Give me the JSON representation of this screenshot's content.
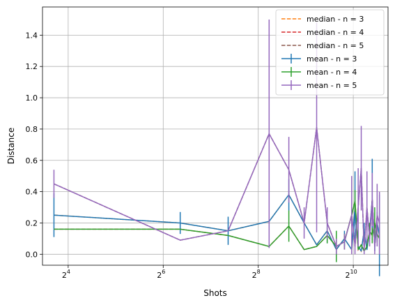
{
  "chart_data": {
    "type": "line",
    "title": "",
    "xlabel": "Shots",
    "ylabel": "Distance",
    "x_scale": "log2",
    "xlim": [
      11,
      1700
    ],
    "ylim": [
      -0.07,
      1.58
    ],
    "x_ticks": [
      {
        "value": 16,
        "base": "2",
        "exp": "4"
      },
      {
        "value": 64,
        "base": "2",
        "exp": "6"
      },
      {
        "value": 256,
        "base": "2",
        "exp": "8"
      },
      {
        "value": 1024,
        "base": "2",
        "exp": "10"
      }
    ],
    "y_ticks": [
      {
        "value": 0.0,
        "label": "0.0"
      },
      {
        "value": 0.2,
        "label": "0.2"
      },
      {
        "value": 0.4,
        "label": "0.4"
      },
      {
        "value": 0.6,
        "label": "0.6"
      },
      {
        "value": 0.8,
        "label": "0.8"
      },
      {
        "value": 1.0,
        "label": "1.0"
      },
      {
        "value": 1.2,
        "label": "1.2"
      },
      {
        "value": 1.4,
        "label": "1.4"
      }
    ],
    "grid": true,
    "legend_position": "top-right",
    "x": [
      13,
      82,
      165,
      300,
      400,
      500,
      600,
      700,
      800,
      900,
      1000,
      1050,
      1100,
      1150,
      1200,
      1250,
      1300,
      1350,
      1400,
      1450,
      1500
    ],
    "series": [
      {
        "name": "median - n = 3",
        "style": "dashed",
        "color": "#ff7f0e",
        "values": [
          0.25,
          0.2,
          0.15,
          0.21,
          0.38,
          0.2,
          0.06,
          0.15,
          0.03,
          0.1,
          0.03,
          0.3,
          0.05,
          0.02,
          0.15,
          0.03,
          0.15,
          0.35,
          0.05,
          0.2,
          0.12
        ]
      },
      {
        "name": "median - n = 4",
        "style": "dashed",
        "color": "#d62728",
        "values": [
          0.16,
          0.16,
          0.12,
          0.05,
          0.18,
          0.03,
          0.05,
          0.12,
          0.05,
          0.08,
          0.25,
          0.34,
          0.03,
          0.06,
          0.02,
          0.05,
          0.15,
          0.12,
          0.2,
          0.13,
          0.1
        ]
      },
      {
        "name": "median - n = 5",
        "style": "dashed",
        "color": "#8c564b",
        "values": [
          0.45,
          0.09,
          0.15,
          0.77,
          0.54,
          0.2,
          0.81,
          0.2,
          0.05,
          0.08,
          0.25,
          0.05,
          0.3,
          0.55,
          0.03,
          0.3,
          0.1,
          0.35,
          0.05,
          0.25,
          0.2
        ]
      },
      {
        "name": "mean - n = 3",
        "style": "errorbar",
        "color": "#1f77b4",
        "values": [
          0.25,
          0.2,
          0.15,
          0.21,
          0.38,
          0.2,
          0.06,
          0.15,
          0.03,
          0.1,
          0.03,
          0.3,
          0.05,
          0.02,
          0.15,
          0.03,
          0.15,
          0.35,
          0.05,
          0.2,
          0.12
        ],
        "errors": [
          0.14,
          0.07,
          0.09,
          0.0,
          0.1,
          0.0,
          0.0,
          0.08,
          0.0,
          0.05,
          0.0,
          0.23,
          0.0,
          0.0,
          0.05,
          0.0,
          0.05,
          0.26,
          0.03,
          0.07,
          0.26
        ]
      },
      {
        "name": "mean - n = 4",
        "style": "errorbar",
        "color": "#2ca02c",
        "values": [
          0.16,
          0.16,
          0.12,
          0.05,
          0.18,
          0.03,
          0.05,
          0.12,
          0.05,
          0.08,
          0.25,
          0.34,
          0.03,
          0.06,
          0.02,
          0.05,
          0.15,
          0.12,
          0.2,
          0.13,
          0.1
        ],
        "errors": [
          0.0,
          0.0,
          0.0,
          0.0,
          0.1,
          0.0,
          0.0,
          0.05,
          0.1,
          0.05,
          0.05,
          0.07,
          0.0,
          0.0,
          0.0,
          0.0,
          0.05,
          0.05,
          0.1,
          0.05,
          0.05
        ]
      },
      {
        "name": "mean - n = 5",
        "style": "errorbar",
        "color": "#9467bd",
        "values": [
          0.45,
          0.09,
          0.15,
          0.77,
          0.54,
          0.2,
          0.81,
          0.2,
          0.05,
          0.08,
          0.25,
          0.05,
          0.3,
          0.55,
          0.03,
          0.3,
          0.1,
          0.35,
          0.05,
          0.25,
          0.2
        ],
        "errors": [
          0.09,
          0.0,
          0.0,
          0.73,
          0.21,
          0.1,
          0.67,
          0.1,
          0.05,
          0.05,
          0.25,
          0.05,
          0.25,
          0.27,
          0.03,
          0.23,
          0.05,
          0.17,
          0.05,
          0.2,
          0.2
        ]
      }
    ]
  }
}
